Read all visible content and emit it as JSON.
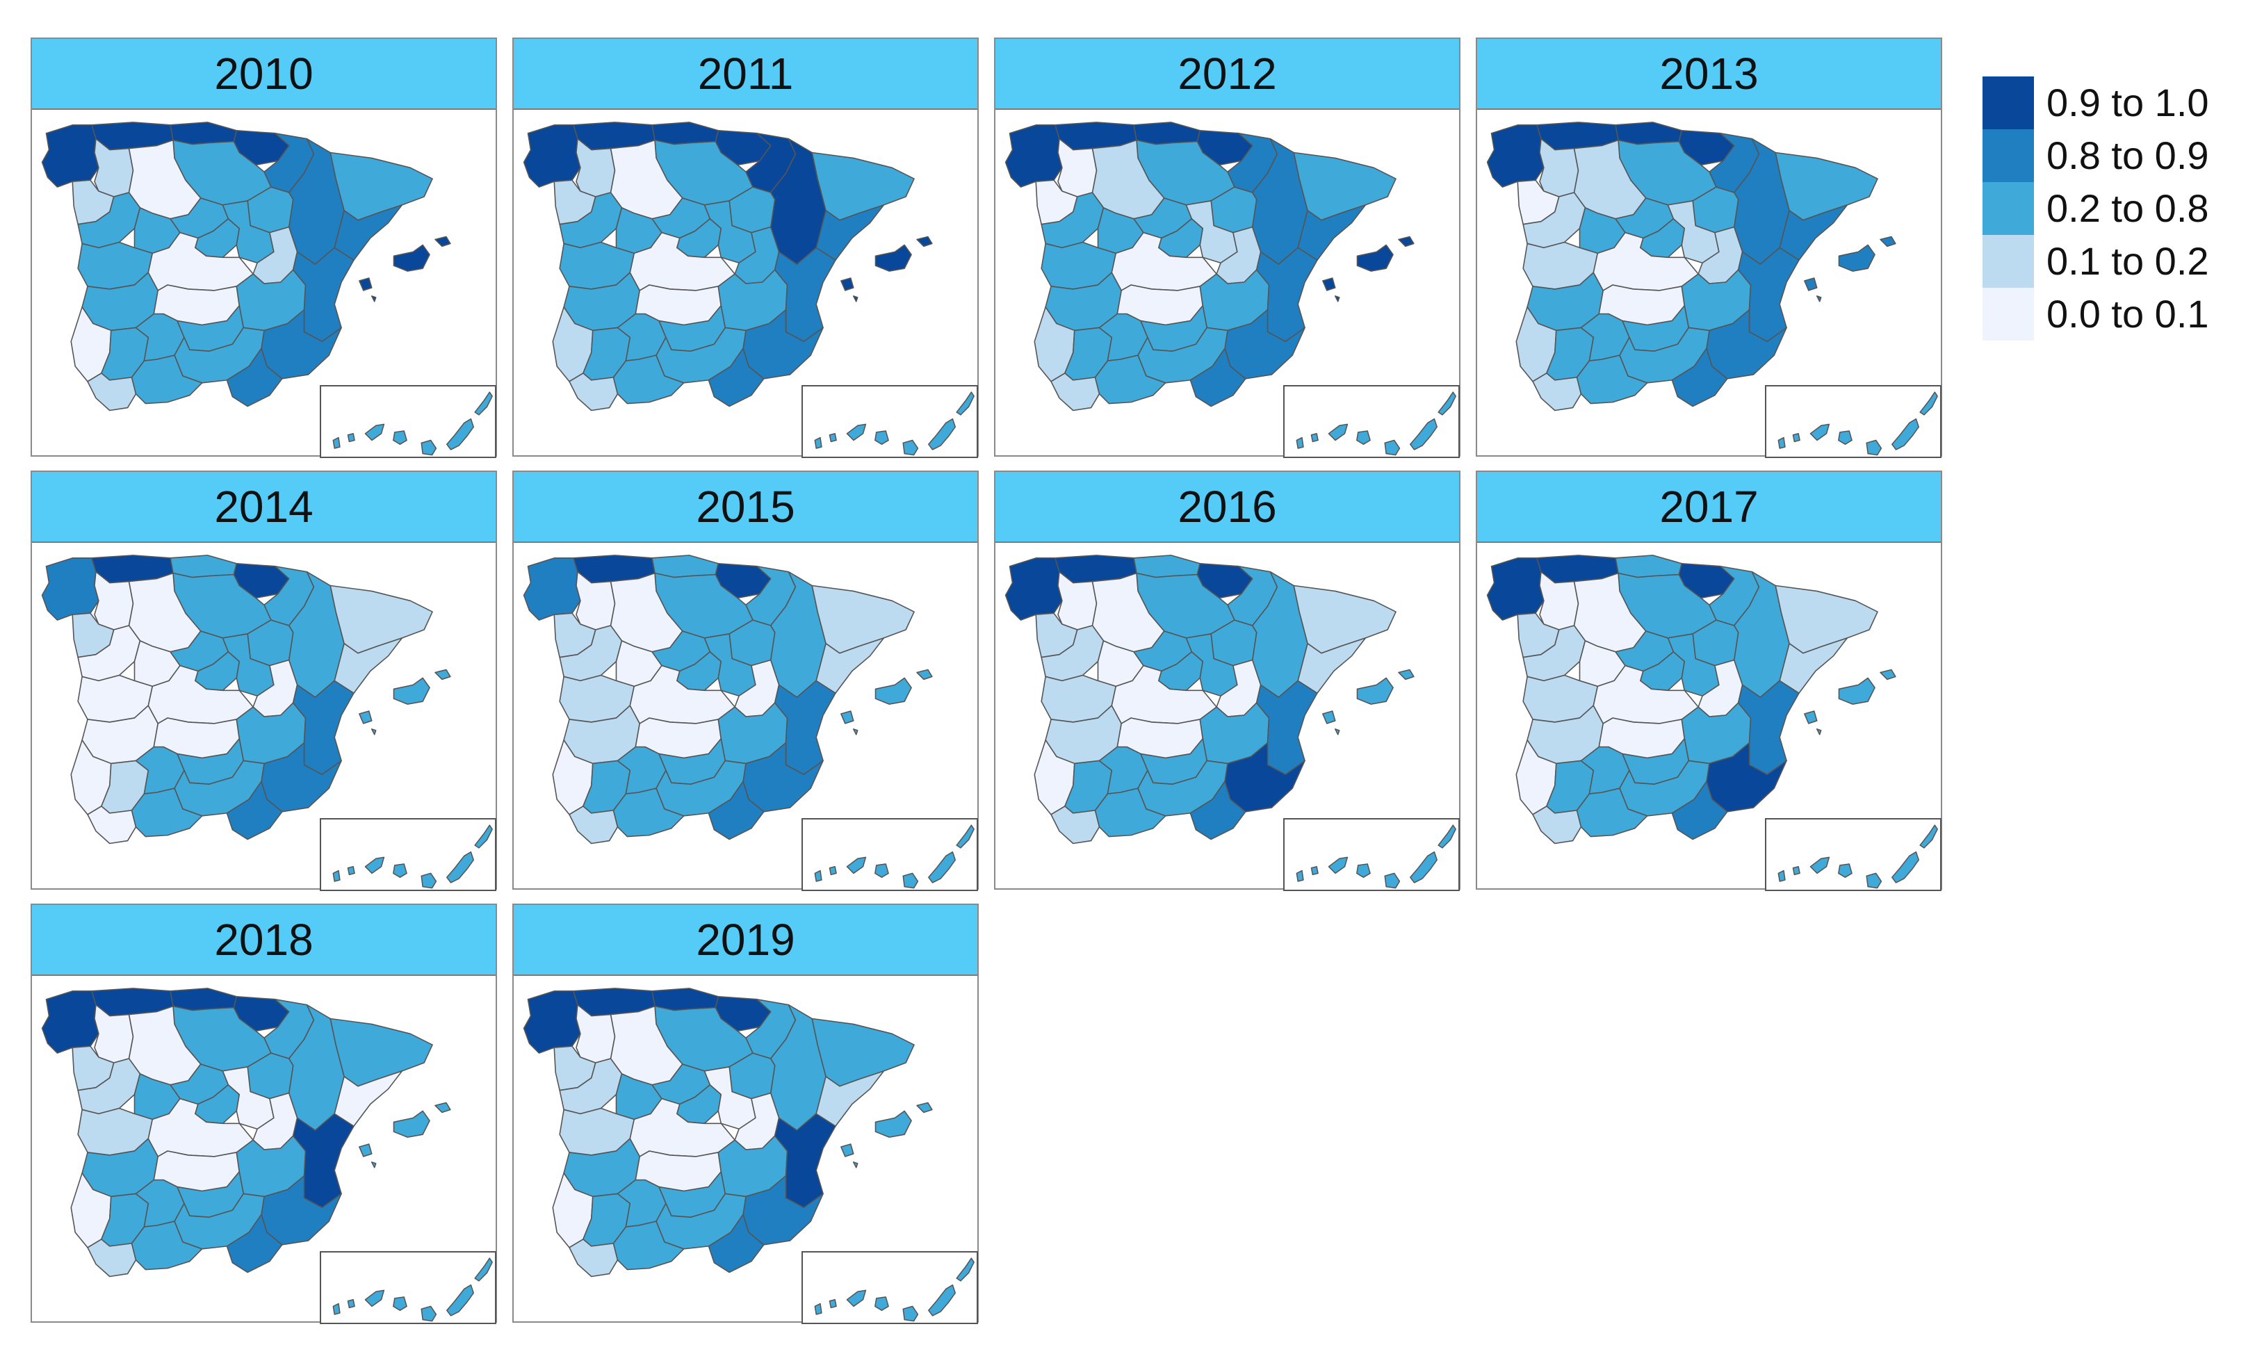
{
  "colors": {
    "c1": "#08479a",
    "c2": "#1f7fc1",
    "c3": "#3fa9d9",
    "c4": "#bcdaf0",
    "c5": "#eef3fd",
    "header": "#55ccf8"
  },
  "legend": [
    {
      "label": "0.9 to 1.0",
      "color_key": "c1"
    },
    {
      "label": "0.8 to 0.9",
      "color_key": "c2"
    },
    {
      "label": "0.2 to 0.8",
      "color_key": "c3"
    },
    {
      "label": "0.1 to 0.2",
      "color_key": "c4"
    },
    {
      "label": "0.0 to 0.1",
      "color_key": "c5"
    }
  ],
  "panels": [
    {
      "year": "2010",
      "regions": {
        "galicia": "c1",
        "asturias": "c1",
        "cantabria": "c1",
        "basque": "c1",
        "navarra": "c2",
        "aragon": "c2",
        "catalonia": "c3",
        "catalonia_coast": "c2",
        "leon": "c4",
        "burgos": "c3",
        "soria": "c3",
        "zamora": "c4",
        "valladolid": "c5",
        "salamanca": "c3",
        "avila": "c3",
        "segovia": "c3",
        "madrid": "c3",
        "guadalajara": "c3",
        "cuenca": "c4",
        "caceres": "c3",
        "badajoz": "c3",
        "toledo": "c5",
        "ciudad_real": "c5",
        "albacete": "c3",
        "valencia": "c2",
        "murcia": "c2",
        "huelva": "c5",
        "sevilla": "c3",
        "cordoba": "c3",
        "jaen": "c3",
        "granada": "c3",
        "almeria": "c2",
        "cadiz": "c4",
        "malaga": "c3",
        "balearics": "c1",
        "canarias": "c3"
      }
    },
    {
      "year": "2011",
      "regions": {
        "galicia": "c1",
        "asturias": "c1",
        "cantabria": "c1",
        "basque": "c1",
        "navarra": "c1",
        "aragon": "c1",
        "catalonia": "c3",
        "catalonia_coast": "c2",
        "leon": "c4",
        "burgos": "c3",
        "soria": "c3",
        "zamora": "c4",
        "valladolid": "c5",
        "salamanca": "c3",
        "avila": "c3",
        "segovia": "c3",
        "madrid": "c3",
        "guadalajara": "c3",
        "cuenca": "c3",
        "caceres": "c3",
        "badajoz": "c3",
        "toledo": "c5",
        "ciudad_real": "c5",
        "albacete": "c3",
        "valencia": "c2",
        "murcia": "c2",
        "huelva": "c4",
        "sevilla": "c3",
        "cordoba": "c3",
        "jaen": "c3",
        "granada": "c3",
        "almeria": "c2",
        "cadiz": "c4",
        "malaga": "c3",
        "balearics": "c1",
        "canarias": "c3"
      }
    },
    {
      "year": "2012",
      "regions": {
        "galicia": "c1",
        "asturias": "c1",
        "cantabria": "c1",
        "basque": "c1",
        "navarra": "c2",
        "aragon": "c2",
        "catalonia": "c3",
        "catalonia_coast": "c2",
        "leon": "c5",
        "burgos": "c3",
        "soria": "c3",
        "zamora": "c5",
        "valladolid": "c4",
        "salamanca": "c3",
        "avila": "c3",
        "segovia": "c3",
        "madrid": "c3",
        "guadalajara": "c4",
        "cuenca": "c4",
        "caceres": "c3",
        "badajoz": "c3",
        "toledo": "c5",
        "ciudad_real": "c5",
        "albacete": "c3",
        "valencia": "c2",
        "murcia": "c2",
        "huelva": "c4",
        "sevilla": "c3",
        "cordoba": "c3",
        "jaen": "c3",
        "granada": "c3",
        "almeria": "c2",
        "cadiz": "c4",
        "malaga": "c3",
        "balearics": "c1",
        "canarias": "c3"
      }
    },
    {
      "year": "2013",
      "regions": {
        "galicia": "c1",
        "asturias": "c1",
        "cantabria": "c1",
        "basque": "c1",
        "navarra": "c2",
        "aragon": "c2",
        "catalonia": "c3",
        "catalonia_coast": "c2",
        "leon": "c4",
        "burgos": "c3",
        "soria": "c3",
        "zamora": "c5",
        "valladolid": "c4",
        "salamanca": "c4",
        "avila": "c3",
        "segovia": "c3",
        "madrid": "c3",
        "guadalajara": "c4",
        "cuenca": "c4",
        "caceres": "c4",
        "badajoz": "c3",
        "toledo": "c5",
        "ciudad_real": "c5",
        "albacete": "c3",
        "valencia": "c2",
        "murcia": "c2",
        "huelva": "c4",
        "sevilla": "c3",
        "cordoba": "c3",
        "jaen": "c3",
        "granada": "c3",
        "almeria": "c2",
        "cadiz": "c4",
        "malaga": "c3",
        "balearics": "c2",
        "canarias": "c3"
      }
    },
    {
      "year": "2014",
      "regions": {
        "galicia": "c2",
        "asturias": "c1",
        "cantabria": "c3",
        "basque": "c1",
        "navarra": "c3",
        "aragon": "c3",
        "catalonia": "c4",
        "catalonia_coast": "c4",
        "leon": "c5",
        "burgos": "c3",
        "soria": "c3",
        "zamora": "c4",
        "valladolid": "c5",
        "salamanca": "c5",
        "avila": "c5",
        "segovia": "c3",
        "madrid": "c3",
        "guadalajara": "c3",
        "cuenca": "c5",
        "caceres": "c5",
        "badajoz": "c5",
        "toledo": "c5",
        "ciudad_real": "c5",
        "albacete": "c3",
        "valencia": "c2",
        "murcia": "c2",
        "huelva": "c5",
        "sevilla": "c4",
        "cordoba": "c3",
        "jaen": "c3",
        "granada": "c3",
        "almeria": "c2",
        "cadiz": "c5",
        "malaga": "c3",
        "balearics": "c3",
        "canarias": "c3"
      }
    },
    {
      "year": "2015",
      "regions": {
        "galicia": "c2",
        "asturias": "c1",
        "cantabria": "c3",
        "basque": "c1",
        "navarra": "c3",
        "aragon": "c3",
        "catalonia": "c4",
        "catalonia_coast": "c4",
        "leon": "c5",
        "burgos": "c3",
        "soria": "c3",
        "zamora": "c4",
        "valladolid": "c5",
        "salamanca": "c4",
        "avila": "c5",
        "segovia": "c3",
        "madrid": "c3",
        "guadalajara": "c3",
        "cuenca": "c5",
        "caceres": "c4",
        "badajoz": "c4",
        "toledo": "c5",
        "ciudad_real": "c5",
        "albacete": "c3",
        "valencia": "c2",
        "murcia": "c2",
        "huelva": "c5",
        "sevilla": "c3",
        "cordoba": "c3",
        "jaen": "c3",
        "granada": "c3",
        "almeria": "c2",
        "cadiz": "c4",
        "malaga": "c3",
        "balearics": "c3",
        "canarias": "c3"
      }
    },
    {
      "year": "2016",
      "regions": {
        "galicia": "c1",
        "asturias": "c1",
        "cantabria": "c3",
        "basque": "c1",
        "navarra": "c3",
        "aragon": "c3",
        "catalonia": "c4",
        "catalonia_coast": "c4",
        "leon": "c5",
        "burgos": "c3",
        "soria": "c3",
        "zamora": "c4",
        "valladolid": "c5",
        "salamanca": "c4",
        "avila": "c5",
        "segovia": "c3",
        "madrid": "c3",
        "guadalajara": "c3",
        "cuenca": "c5",
        "caceres": "c4",
        "badajoz": "c4",
        "toledo": "c5",
        "ciudad_real": "c5",
        "albacete": "c3",
        "valencia": "c2",
        "murcia": "c1",
        "huelva": "c5",
        "sevilla": "c3",
        "cordoba": "c3",
        "jaen": "c3",
        "granada": "c3",
        "almeria": "c2",
        "cadiz": "c4",
        "malaga": "c3",
        "balearics": "c3",
        "canarias": "c3"
      }
    },
    {
      "year": "2017",
      "regions": {
        "galicia": "c1",
        "asturias": "c1",
        "cantabria": "c3",
        "basque": "c1",
        "navarra": "c3",
        "aragon": "c3",
        "catalonia": "c4",
        "catalonia_coast": "c4",
        "leon": "c5",
        "burgos": "c3",
        "soria": "c3",
        "zamora": "c4",
        "valladolid": "c5",
        "salamanca": "c4",
        "avila": "c5",
        "segovia": "c3",
        "madrid": "c3",
        "guadalajara": "c3",
        "cuenca": "c5",
        "caceres": "c4",
        "badajoz": "c4",
        "toledo": "c5",
        "ciudad_real": "c5",
        "albacete": "c3",
        "valencia": "c2",
        "murcia": "c1",
        "huelva": "c5",
        "sevilla": "c3",
        "cordoba": "c3",
        "jaen": "c3",
        "granada": "c3",
        "almeria": "c2",
        "cadiz": "c4",
        "malaga": "c3",
        "balearics": "c3",
        "canarias": "c3"
      }
    },
    {
      "year": "2018",
      "regions": {
        "galicia": "c1",
        "asturias": "c1",
        "cantabria": "c1",
        "basque": "c1",
        "navarra": "c3",
        "aragon": "c3",
        "catalonia": "c3",
        "catalonia_coast": "c5",
        "leon": "c5",
        "burgos": "c3",
        "soria": "c3",
        "zamora": "c4",
        "valladolid": "c5",
        "salamanca": "c4",
        "avila": "c3",
        "segovia": "c3",
        "madrid": "c3",
        "guadalajara": "c5",
        "cuenca": "c5",
        "caceres": "c4",
        "badajoz": "c3",
        "toledo": "c5",
        "ciudad_real": "c5",
        "albacete": "c3",
        "valencia": "c1",
        "murcia": "c2",
        "huelva": "c5",
        "sevilla": "c3",
        "cordoba": "c3",
        "jaen": "c3",
        "granada": "c3",
        "almeria": "c2",
        "cadiz": "c4",
        "malaga": "c3",
        "balearics": "c3",
        "canarias": "c3"
      }
    },
    {
      "year": "2019",
      "regions": {
        "galicia": "c1",
        "asturias": "c1",
        "cantabria": "c1",
        "basque": "c1",
        "navarra": "c3",
        "aragon": "c3",
        "catalonia": "c3",
        "catalonia_coast": "c4",
        "leon": "c5",
        "burgos": "c3",
        "soria": "c3",
        "zamora": "c4",
        "valladolid": "c5",
        "salamanca": "c4",
        "avila": "c3",
        "segovia": "c3",
        "madrid": "c3",
        "guadalajara": "c5",
        "cuenca": "c5",
        "caceres": "c4",
        "badajoz": "c3",
        "toledo": "c5",
        "ciudad_real": "c5",
        "albacete": "c3",
        "valencia": "c1",
        "murcia": "c2",
        "huelva": "c5",
        "sevilla": "c3",
        "cordoba": "c3",
        "jaen": "c3",
        "granada": "c3",
        "almeria": "c2",
        "cadiz": "c4",
        "malaga": "c3",
        "balearics": "c3",
        "canarias": "c3"
      }
    }
  ]
}
